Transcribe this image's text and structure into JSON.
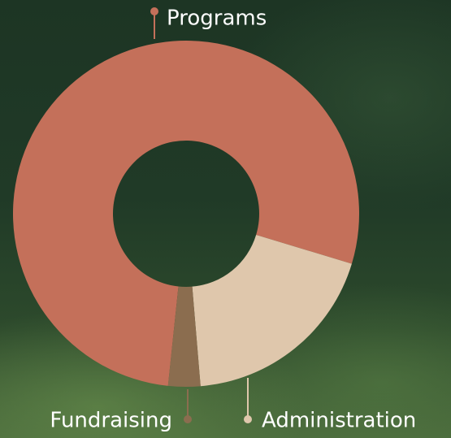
{
  "chart_data": {
    "type": "donut",
    "categories": [
      "Programs",
      "Administration",
      "Fundraising"
    ],
    "values": [
      78,
      19,
      3
    ],
    "colors": [
      "#c4705a",
      "#dfc7ac",
      "#8b6d4f"
    ]
  }
}
